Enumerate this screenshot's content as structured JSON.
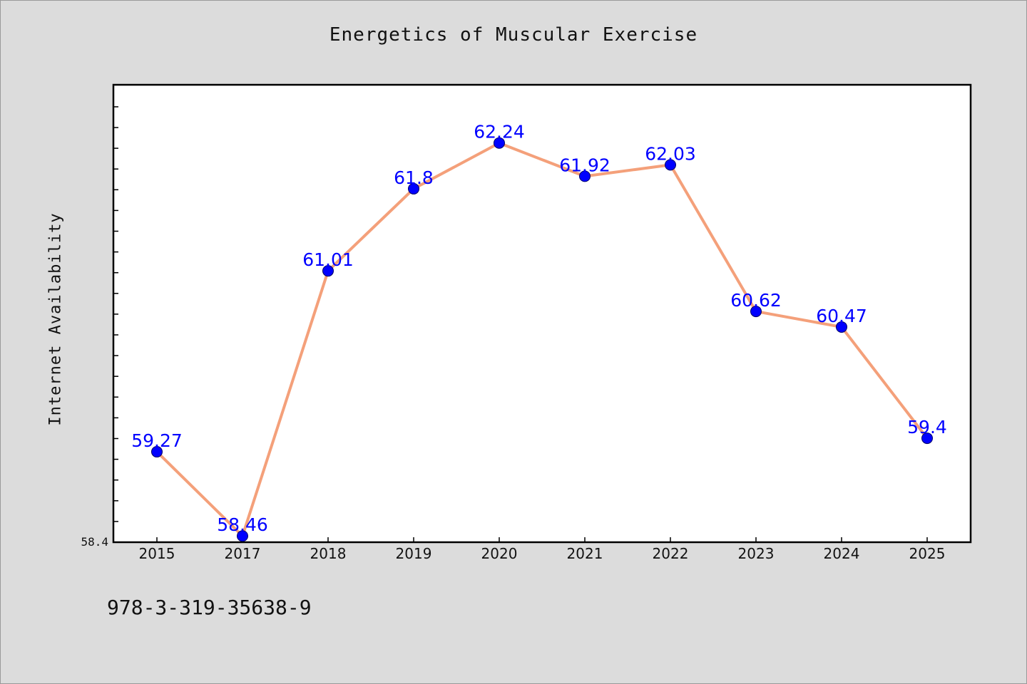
{
  "chart_data": {
    "type": "line",
    "title": "Energetics of Muscular Exercise",
    "xlabel": "",
    "ylabel": "Internet Availability",
    "categories": [
      "2015",
      "2017",
      "2018",
      "2019",
      "2020",
      "2021",
      "2022",
      "2023",
      "2024",
      "2025"
    ],
    "series": [
      {
        "values": [
          59.27,
          58.46,
          61.01,
          61.8,
          62.24,
          61.92,
          62.03,
          60.62,
          60.47,
          59.4
        ],
        "line_color": "#f4a07a",
        "marker_color": "#0000ff"
      }
    ],
    "data_labels": [
      "59.27",
      "58.46",
      "61.01",
      "61.8",
      "62.24",
      "61.92",
      "62.03",
      "60.62",
      "60.47",
      "59.4"
    ],
    "ylim": [
      58.4,
      62.8
    ],
    "y_tick_label": "58.4",
    "grid": false,
    "legend": "none",
    "label_color": "#0000ff"
  },
  "footer": {
    "code": "978-3-319-35638-9"
  }
}
